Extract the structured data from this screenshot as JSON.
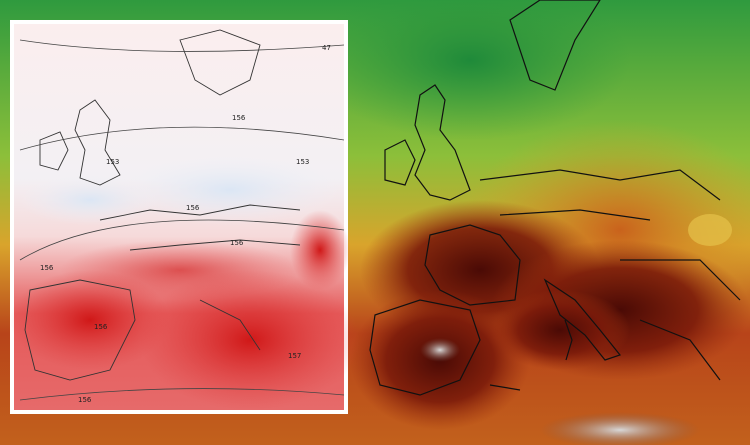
{
  "map_inset": {
    "contour_labels": [
      "47",
      "156",
      "153",
      "153",
      "156",
      "156",
      "156",
      "156",
      "157",
      "156"
    ]
  }
}
